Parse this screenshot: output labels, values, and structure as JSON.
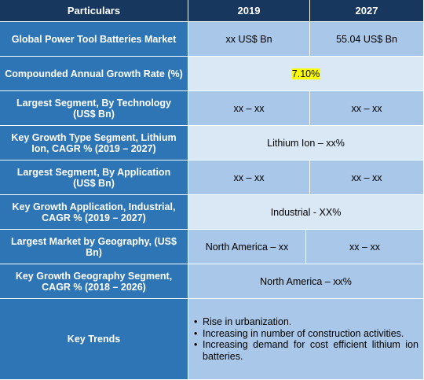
{
  "header": {
    "particulars": "Particulars",
    "col1": "2019",
    "col2": "2027"
  },
  "rows": [
    {
      "label": "Global Power Tool Batteries Market",
      "v2019": "xx US$ Bn",
      "v2027": "55.04 US$ Bn"
    },
    {
      "label": "Compounded Annual Growth Rate (%)",
      "merged": "7.10%"
    },
    {
      "label": "Largest Segment, By Technology (US$ Bn)",
      "v2019": "xx – xx",
      "v2027": "xx – xx"
    },
    {
      "label": "Key Growth Type Segment, Lithium Ion, CAGR % (2019 – 2027)",
      "merged": "Lithium Ion – xx%"
    },
    {
      "label": "Largest Segment, By Application (US$ Bn)",
      "v2019": "xx – xx",
      "v2027": "xx – xx"
    },
    {
      "label": "Key Growth Application, Industrial, CAGR % (2019 – 2027)",
      "merged": "Industrial - XX%"
    },
    {
      "label": "Largest Market by Geography, (US$ Bn)",
      "v2019": "North America – xx",
      "v2027": "xx – xx"
    },
    {
      "label": "Key Growth Geography Segment, CAGR % (2018 – 2026)",
      "merged": "North America – xx%"
    }
  ],
  "key_trends": {
    "label": "Key Trends",
    "items": [
      "Rise in urbanization.",
      "Increasing in number of construction activities.",
      "Increasing demand for cost efficient lithium ion batteries."
    ]
  },
  "colors": {
    "header_bg": "#17375e",
    "label_bg": "#2e75b6",
    "value_bg": "#a9c7e8",
    "value_light_bg": "#dae8f6",
    "highlight": "#ffff00"
  }
}
